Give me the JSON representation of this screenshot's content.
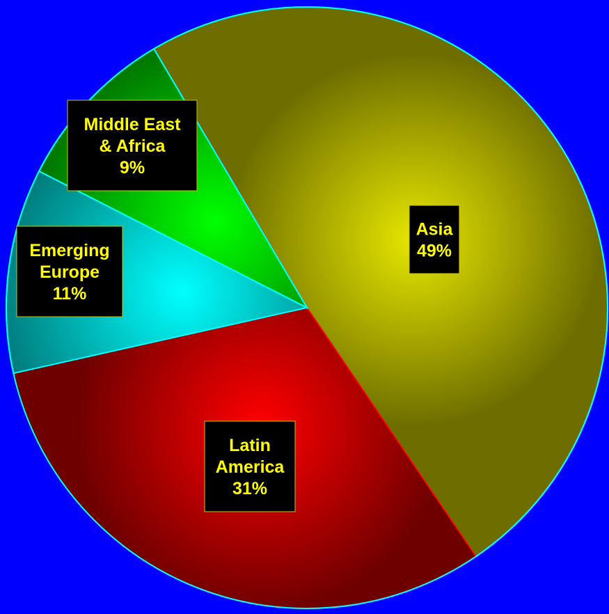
{
  "chart_data": {
    "type": "pie",
    "title": "",
    "slices": [
      {
        "name": "Asia",
        "label_lines": [
          "Asia",
          "49%"
        ],
        "value": 49,
        "color": "#e6e600",
        "edge_color": "#6e6e00",
        "border": "#00ffff"
      },
      {
        "name": "Latin America",
        "label_lines": [
          "Latin",
          "America",
          "31%"
        ],
        "value": 31,
        "color": "#ff0000",
        "edge_color": "#6e0000",
        "border": "#ff0000"
      },
      {
        "name": "Emerging Europe",
        "label_lines": [
          "Emerging",
          "Europe",
          "11%"
        ],
        "value": 11,
        "color": "#00ffff",
        "edge_color": "#007a7a",
        "border": "#00ffff"
      },
      {
        "name": "Middle East & Africa",
        "label_lines": [
          "Middle East",
          "& Africa",
          "9%"
        ],
        "value": 9,
        "color": "#00ff00",
        "edge_color": "#007000",
        "border": "#00ffff"
      }
    ],
    "legend": "none",
    "colors": {
      "background": "#0000ff",
      "label_text": "#ffff00",
      "label_box": "#000000",
      "pie_border": "#00ffff"
    }
  }
}
